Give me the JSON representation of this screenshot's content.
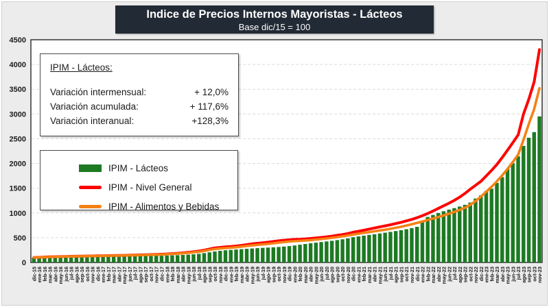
{
  "header": {
    "title": "Indice de Precios Internos Mayoristas - Lácteos",
    "subtitle": "Base dic/15 = 100"
  },
  "infobox": {
    "title": "IPIM - Lácteos:",
    "rows": [
      {
        "label": "Variación intermensual:",
        "value": "+ 12,0%"
      },
      {
        "label": "Variación  acumulada:",
        "value": "+ 117,6%"
      },
      {
        "label": "Variación interanual:",
        "value": "+128,3%"
      }
    ]
  },
  "legend": {
    "items": [
      {
        "label": "IPIM - Lácteos",
        "color": "#1d7a23",
        "type": "bar"
      },
      {
        "label": "IPIM - Nivel General",
        "color": "#fe0000",
        "type": "line"
      },
      {
        "label": "IPIM - Alimentos y Bebidas",
        "color": "#f58114",
        "type": "line"
      }
    ]
  },
  "colors": {
    "header_bg": "#222b35",
    "plot_border": "#3f3f3f",
    "gridline": "#d9d9d9",
    "axis_text": "#1a1a1a",
    "background": "#ececec"
  },
  "chart_data": {
    "type": "bar",
    "title": "Indice de Precios Internos Mayoristas - Lácteos",
    "subtitle": "Base dic/15 = 100",
    "xlabel": "",
    "ylabel": "",
    "ylim": [
      0,
      4500
    ],
    "ytick_step": 500,
    "grid": "horizontal-dashed",
    "legend_position": "upper-left-box",
    "categories": [
      "dic-15",
      "ene-16",
      "feb-16",
      "mar-16",
      "abr-16",
      "may-16",
      "jun-16",
      "jul-16",
      "ago-16",
      "sep-16",
      "oct-16",
      "nov-16",
      "dic-16",
      "ene-17",
      "feb-17",
      "mar-17",
      "abr-17",
      "may-17",
      "jun-17",
      "jul-17",
      "ago-17",
      "sep-17",
      "oct-17",
      "nov-17",
      "dic-17",
      "ene-18",
      "feb-18",
      "mar-18",
      "abr-18",
      "may-18",
      "jun-18",
      "jul-18",
      "ago-18",
      "sep-18",
      "oct-18",
      "nov-18",
      "dic-18",
      "ene-19",
      "feb-19",
      "mar-19",
      "abr-19",
      "may-19",
      "jun-19",
      "jul-19",
      "ago-19",
      "sep-19",
      "oct-19",
      "nov-19",
      "dic-19",
      "ene-20",
      "feb-20",
      "mar-20",
      "abr-20",
      "may-20",
      "jun-20",
      "jul-20",
      "ago-20",
      "sep-20",
      "oct-20",
      "nov-20",
      "dic-20",
      "ene-21",
      "feb-21",
      "mar-21",
      "abr-21",
      "may-21",
      "jun-21",
      "jul-21",
      "ago-21",
      "sep-21",
      "oct-21",
      "nov-21",
      "dic-21",
      "ene-22",
      "feb-22",
      "mar-22",
      "abr-22",
      "may-22",
      "jun-22",
      "jul-22",
      "ago-22",
      "sep-22",
      "oct-22",
      "nov-22",
      "dic-22",
      "ene-23",
      "feb-23",
      "mar-23",
      "abr-23",
      "may-23",
      "jun-23",
      "jul-23",
      "ago-23",
      "sep-23",
      "oct-23",
      "nov-23"
    ],
    "series": [
      {
        "name": "IPIM - Lácteos",
        "type": "bar",
        "color": "#1d7a23",
        "values": [
          100,
          101,
          102,
          104,
          105,
          107,
          108,
          109,
          111,
          112,
          114,
          115,
          117,
          118,
          120,
          121,
          123,
          124,
          126,
          127,
          129,
          131,
          132,
          134,
          136,
          139,
          143,
          147,
          152,
          158,
          165,
          174,
          188,
          205,
          222,
          236,
          247,
          254,
          261,
          268,
          275,
          282,
          289,
          295,
          300,
          306,
          313,
          321,
          331,
          344,
          358,
          372,
          388,
          400,
          412,
          425,
          438,
          452,
          468,
          488,
          510,
          526,
          541,
          556,
          571,
          586,
          601,
          617,
          634,
          652,
          671,
          693,
          720,
          830,
          920,
          960,
          1000,
          1035,
          1068,
          1098,
          1130,
          1165,
          1210,
          1292,
          1356,
          1444,
          1490,
          1608,
          1724,
          1888,
          2005,
          2145,
          2355,
          2520,
          2634,
          2950
        ]
      },
      {
        "name": "IPIM - Nivel General",
        "type": "line",
        "color": "#fe0000",
        "values": [
          100,
          104,
          109,
          113,
          116,
          119,
          122,
          124,
          126,
          128,
          130,
          132,
          134,
          136,
          138,
          140,
          142,
          144,
          147,
          150,
          153,
          156,
          159,
          162,
          166,
          172,
          179,
          186,
          194,
          204,
          216,
          230,
          248,
          272,
          292,
          305,
          315,
          322,
          332,
          345,
          360,
          375,
          388,
          398,
          410,
          425,
          438,
          448,
          458,
          465,
          470,
          476,
          484,
          494,
          505,
          518,
          532,
          548,
          565,
          585,
          610,
          630,
          652,
          674,
          696,
          718,
          740,
          762,
          786,
          812,
          840,
          870,
          905,
          945,
          990,
          1040,
          1092,
          1145,
          1198,
          1255,
          1320,
          1395,
          1480,
          1560,
          1640,
          1750,
          1860,
          1980,
          2120,
          2270,
          2420,
          2580,
          3000,
          3300,
          3650,
          4300
        ]
      },
      {
        "name": "IPIM - Alimentos y Bebidas",
        "type": "line",
        "color": "#f58114",
        "values": [
          100,
          103,
          107,
          111,
          114,
          117,
          120,
          122,
          124,
          126,
          128,
          130,
          132,
          134,
          136,
          138,
          140,
          142,
          144,
          146,
          149,
          152,
          155,
          158,
          161,
          166,
          172,
          178,
          185,
          194,
          205,
          217,
          233,
          255,
          272,
          283,
          291,
          298,
          308,
          320,
          333,
          345,
          356,
          365,
          375,
          388,
          400,
          412,
          424,
          432,
          438,
          444,
          452,
          462,
          473,
          485,
          498,
          512,
          528,
          545,
          565,
          582,
          598,
          614,
          630,
          646,
          662,
          680,
          700,
          722,
          746,
          772,
          800,
          828,
          858,
          888,
          918,
          950,
          985,
          1022,
          1062,
          1108,
          1165,
          1240,
          1330,
          1430,
          1530,
          1640,
          1760,
          1890,
          2030,
          2180,
          2480,
          2800,
          3100,
          3520
        ]
      }
    ]
  }
}
